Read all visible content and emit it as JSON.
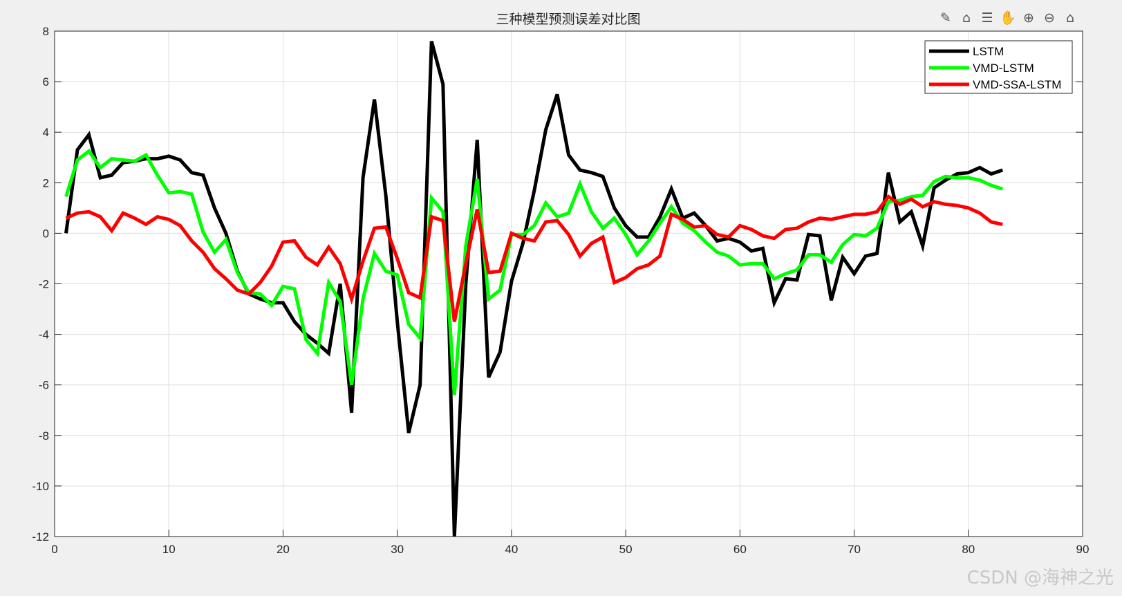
{
  "toolbar": {
    "icons": [
      "edit-icon",
      "brush-icon",
      "legend-icon",
      "pan-hand-icon",
      "zoom-in-icon",
      "zoom-out-icon",
      "home-icon"
    ]
  },
  "watermark": "CSDN @海神之光",
  "chart_data": {
    "type": "line",
    "title": "三种模型预测误差对比图",
    "xlabel": "",
    "ylabel": "",
    "xlim": [
      0,
      90
    ],
    "ylim": [
      -12,
      8
    ],
    "xticks": [
      0,
      10,
      20,
      30,
      40,
      50,
      60,
      70,
      80,
      90
    ],
    "yticks": [
      -12,
      -10,
      -8,
      -6,
      -4,
      -2,
      0,
      2,
      4,
      6,
      8
    ],
    "grid": true,
    "legend_position": "top-right",
    "x_start": 1,
    "series": [
      {
        "name": "LSTM",
        "color": "#000000",
        "values": [
          0,
          3.3,
          3.9,
          2.2,
          2.3,
          2.8,
          2.85,
          2.95,
          2.95,
          3.05,
          2.9,
          2.4,
          2.3,
          1.0,
          0.0,
          -1.5,
          -2.4,
          -2.6,
          -2.75,
          -2.75,
          -3.5,
          -4.0,
          -4.35,
          -4.75,
          -2.0,
          -7.1,
          2.2,
          5.3,
          1.5,
          -3.5,
          -7.9,
          -6.0,
          7.6,
          5.9,
          -12,
          -2.0,
          3.7,
          -5.7,
          -4.7,
          -1.9,
          -0.4,
          1.7,
          4.1,
          5.5,
          3.1,
          2.5,
          2.4,
          2.25,
          1.0,
          0.3,
          -0.15,
          -0.15,
          0.65,
          1.75,
          0.6,
          0.8,
          0.3,
          -0.3,
          -0.2,
          -0.35,
          -0.7,
          -0.6,
          -2.75,
          -1.8,
          -1.85,
          -0.05,
          -0.1,
          -2.65,
          -0.95,
          -1.6,
          -0.9,
          -0.8,
          2.4,
          0.45,
          0.85,
          -0.5,
          1.8,
          2.1,
          2.35,
          2.4,
          2.6,
          2.35,
          2.5
        ]
      },
      {
        "name": "VMD-LSTM",
        "color": "#00ff00",
        "values": [
          1.45,
          2.9,
          3.25,
          2.6,
          2.95,
          2.9,
          2.85,
          3.1,
          2.3,
          1.6,
          1.65,
          1.55,
          0.05,
          -0.75,
          -0.25,
          -1.55,
          -2.35,
          -2.4,
          -2.85,
          -2.1,
          -2.2,
          -4.2,
          -4.75,
          -1.95,
          -2.7,
          -6.0,
          -2.6,
          -0.8,
          -1.5,
          -1.65,
          -3.6,
          -4.15,
          1.4,
          0.85,
          -6.4,
          -0.5,
          2.15,
          -2.6,
          -2.25,
          -0.05,
          -0.05,
          0.3,
          1.2,
          0.65,
          0.8,
          1.95,
          0.85,
          0.2,
          0.6,
          -0.05,
          -0.85,
          -0.3,
          0.4,
          1.05,
          0.4,
          0.1,
          -0.35,
          -0.75,
          -0.9,
          -1.25,
          -1.2,
          -1.2,
          -1.8,
          -1.6,
          -1.45,
          -0.85,
          -0.85,
          -1.15,
          -0.45,
          -0.05,
          -0.1,
          0.2,
          1.25,
          1.3,
          1.45,
          1.5,
          2.05,
          2.25,
          2.2,
          2.2,
          2.1,
          1.9,
          1.75
        ]
      },
      {
        "name": "VMD-SSA-LSTM",
        "color": "#ff0000",
        "values": [
          0.6,
          0.8,
          0.85,
          0.65,
          0.1,
          0.8,
          0.6,
          0.35,
          0.65,
          0.55,
          0.3,
          -0.3,
          -0.75,
          -1.4,
          -1.8,
          -2.25,
          -2.4,
          -1.95,
          -1.3,
          -0.35,
          -0.3,
          -0.95,
          -1.25,
          -0.55,
          -1.2,
          -2.6,
          -1.1,
          0.2,
          0.25,
          -1.0,
          -2.35,
          -2.55,
          0.65,
          0.5,
          -3.5,
          -1.2,
          0.95,
          -1.55,
          -1.5,
          0.0,
          -0.2,
          -0.3,
          0.45,
          0.5,
          -0.05,
          -0.9,
          -0.4,
          -0.15,
          -1.95,
          -1.75,
          -1.4,
          -1.25,
          -0.9,
          0.75,
          0.55,
          0.25,
          0.3,
          -0.05,
          -0.15,
          0.3,
          0.15,
          -0.1,
          -0.2,
          0.15,
          0.2,
          0.45,
          0.6,
          0.55,
          0.65,
          0.75,
          0.75,
          0.85,
          1.45,
          1.15,
          1.35,
          1.05,
          1.25,
          1.15,
          1.1,
          1.0,
          0.8,
          0.45,
          0.35
        ]
      }
    ]
  }
}
